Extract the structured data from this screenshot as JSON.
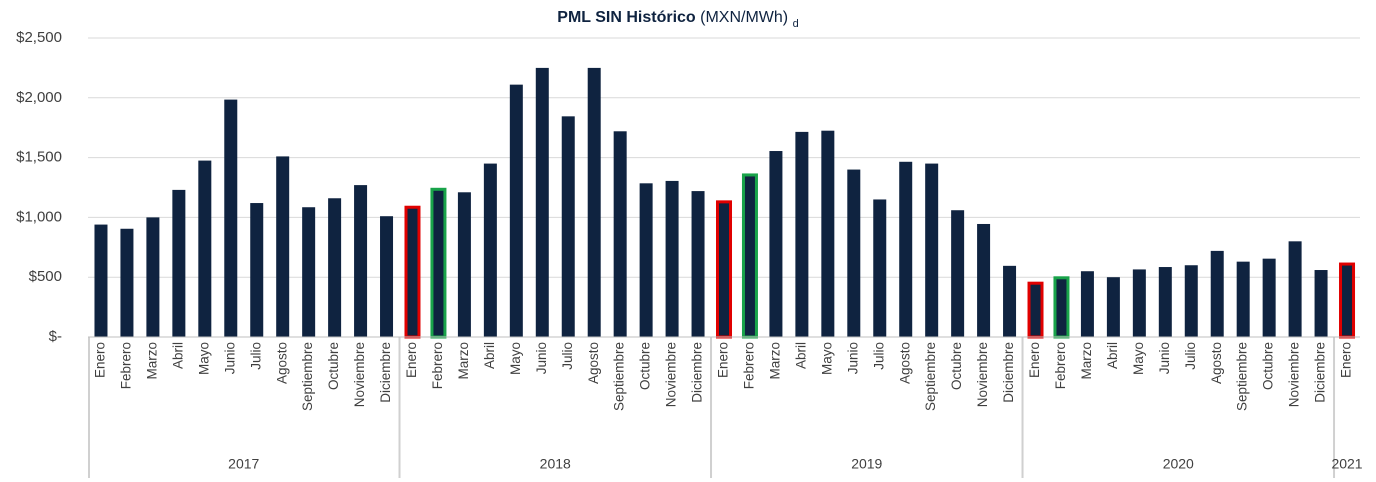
{
  "chart_data": {
    "type": "bar",
    "title": "PML SIN Histórico",
    "title_unit": "(MXN/MWh)",
    "title_sub": "d",
    "groups": [
      {
        "label": "2017",
        "categories": [
          "Enero",
          "Febrero",
          "Marzo",
          "Abril",
          "Mayo",
          "Junio",
          "Julio",
          "Agosto",
          "Septiembre",
          "Octubre",
          "Noviembre",
          "Diciembre"
        ]
      },
      {
        "label": "2018",
        "categories": [
          "Enero",
          "Febrero",
          "Marzo",
          "Abril",
          "Mayo",
          "Junio",
          "Julio",
          "Agosto",
          "Septiembre",
          "Octubre",
          "Noviembre",
          "Diciembre"
        ]
      },
      {
        "label": "2019",
        "categories": [
          "Enero",
          "Febrero",
          "Marzo",
          "Abril",
          "Mayo",
          "Junio",
          "Julio",
          "Agosto",
          "Septiembre",
          "Octubre",
          "Noviembre",
          "Diciembre"
        ]
      },
      {
        "label": "2020",
        "categories": [
          "Enero",
          "Febrero",
          "Marzo",
          "Abril",
          "Mayo",
          "Junio",
          "Julio",
          "Agosto",
          "Septiembre",
          "Octubre",
          "Noviembre",
          "Diciembre"
        ]
      },
      {
        "label": "2021",
        "categories": [
          "Enero"
        ]
      }
    ],
    "series": [
      {
        "color": "#0f2340",
        "values": [
          940,
          905,
          1000,
          1230,
          1475,
          1985,
          1120,
          1510,
          1085,
          1160,
          1270,
          1010,
          1085,
          1235,
          1210,
          1450,
          2110,
          2250,
          1845,
          2250,
          1720,
          1285,
          1305,
          1220,
          1130,
          1355,
          1555,
          1715,
          1725,
          1400,
          1150,
          1465,
          1450,
          1060,
          945,
          595,
          450,
          495,
          550,
          500,
          565,
          585,
          600,
          720,
          630,
          655,
          800,
          560,
          610
        ],
        "outline_colors": [
          null,
          null,
          null,
          null,
          null,
          null,
          null,
          null,
          null,
          null,
          null,
          null,
          "#e00000",
          "#19a34a",
          null,
          null,
          null,
          null,
          null,
          null,
          null,
          null,
          null,
          null,
          "#e00000",
          "#19a34a",
          null,
          null,
          null,
          null,
          null,
          null,
          null,
          null,
          null,
          null,
          "#e00000",
          "#19a34a",
          null,
          null,
          null,
          null,
          null,
          null,
          null,
          null,
          null,
          null,
          "#e00000"
        ]
      }
    ],
    "ylim": [
      0,
      2500
    ],
    "yticks": [
      {
        "value": 0,
        "label": "$-"
      },
      {
        "value": 500,
        "label": "$500"
      },
      {
        "value": 1000,
        "label": "$1,000"
      },
      {
        "value": 1500,
        "label": "$1,500"
      },
      {
        "value": 2000,
        "label": "$2,000"
      },
      {
        "value": 2500,
        "label": "$2,500"
      }
    ],
    "grid": true,
    "grid_color": "#d9d9d9"
  }
}
